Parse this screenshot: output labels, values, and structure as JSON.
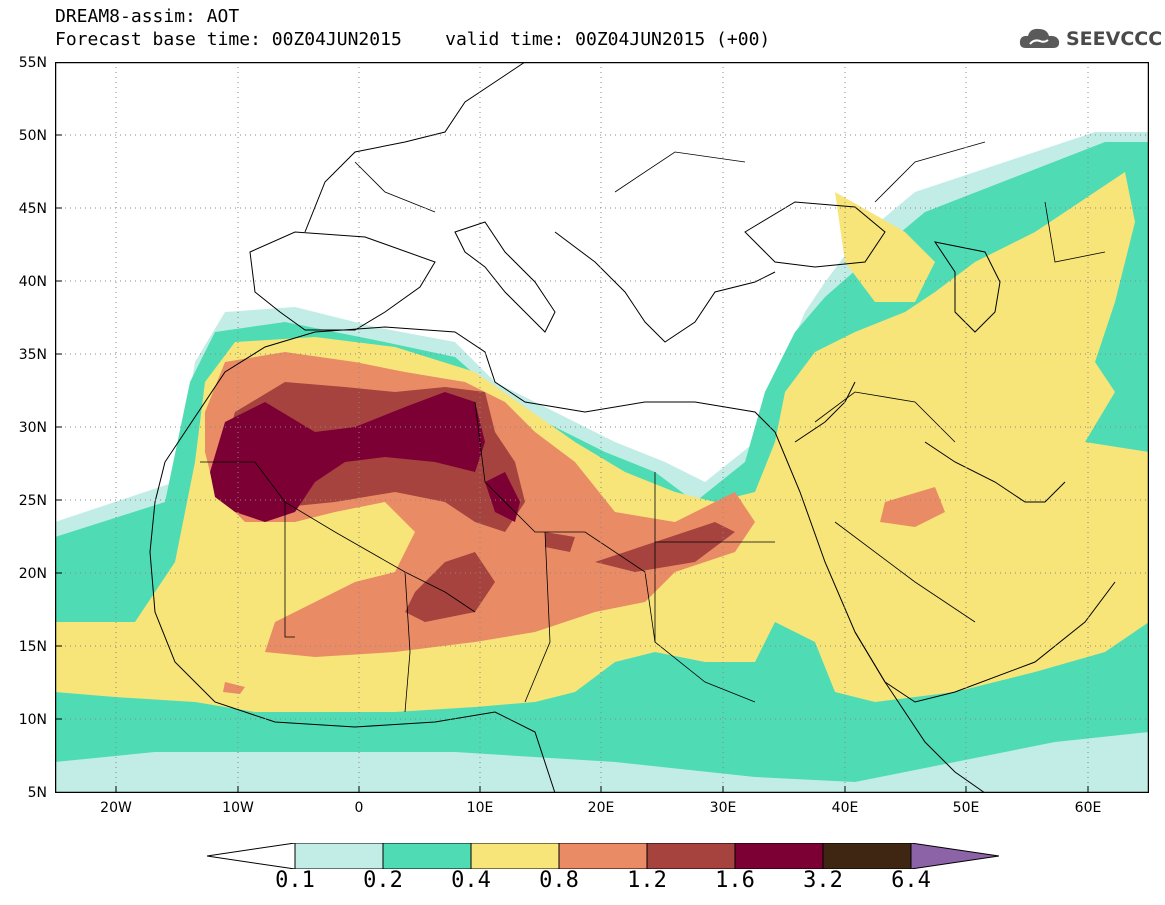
{
  "header": {
    "title_line1": "DREAM8-assim: AOT",
    "title_line2": "Forecast base time: 00Z04JUN2015    valid time: 00Z04JUN2015 (+00)"
  },
  "logo": {
    "text": "SEEVCCC",
    "icon": "cloud-icon"
  },
  "map": {
    "lat_labels": [
      "55N",
      "50N",
      "45N",
      "40N",
      "35N",
      "30N",
      "25N",
      "20N",
      "15N",
      "10N",
      "5N"
    ],
    "lon_labels": [
      "20W",
      "10W",
      "0",
      "10E",
      "20E",
      "30E",
      "40E",
      "50E",
      "60E"
    ]
  },
  "legend": {
    "levels": [
      "0.1",
      "0.2",
      "0.4",
      "0.8",
      "1.2",
      "1.6",
      "3.2",
      "6.4"
    ],
    "colors": [
      "#ffffff",
      "#c2ede6",
      "#4fdcb4",
      "#f7e57a",
      "#e98c66",
      "#a6433e",
      "#7c0033",
      "#3e2612",
      "#8d63a8"
    ]
  }
}
